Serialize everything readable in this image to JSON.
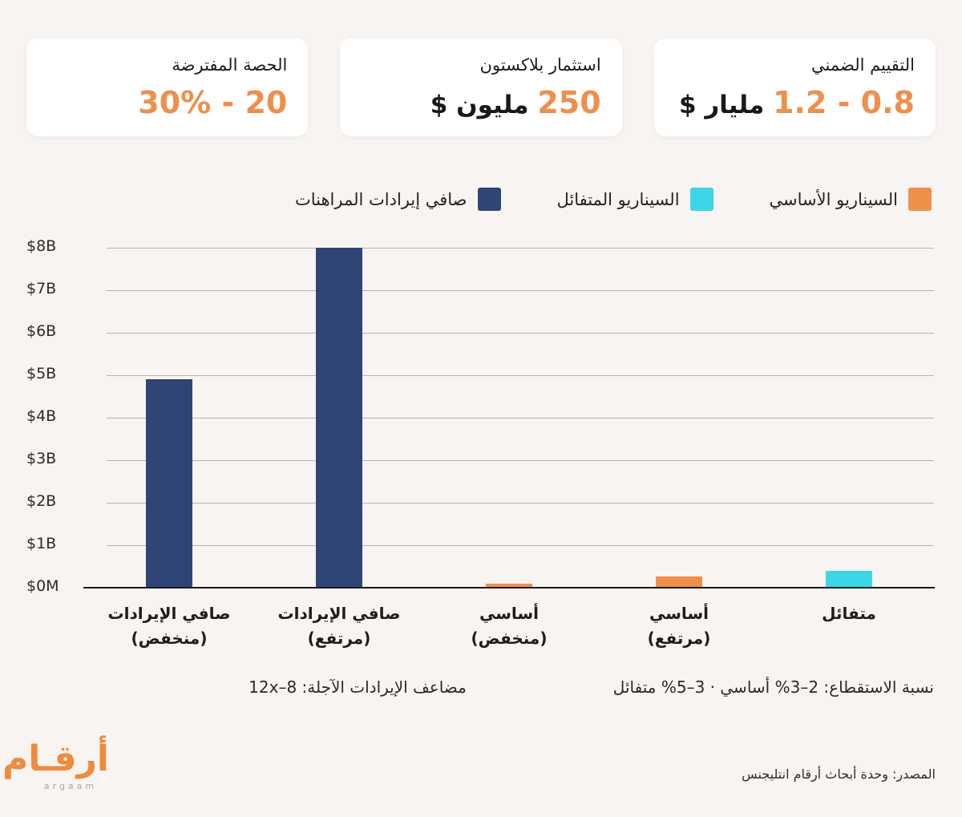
{
  "page": {
    "background": "#F7F4F1",
    "accent_orange": "#EE8F4C",
    "accent_cyan": "#3BD7E6",
    "accent_navy": "#2F4575"
  },
  "cards": [
    {
      "title": "التقييم الضمني",
      "value_highlight": "0.8 - 1.2",
      "value_suffix": "مليار $"
    },
    {
      "title": "استثمار بلاكستون",
      "value_highlight": "250",
      "value_suffix": "مليون $"
    },
    {
      "title": "الحصة المفترضة",
      "value_highlight": "20 - 30%",
      "value_suffix": ""
    }
  ],
  "legend": [
    {
      "label": "السيناريو الأساسي",
      "color": "#EE8F4C"
    },
    {
      "label": "السيناريو المتفائل",
      "color": "#3BD7E6"
    },
    {
      "label": "صافي إيرادات المراهنات",
      "color": "#2F4575"
    }
  ],
  "chart_data": {
    "type": "bar",
    "title": "",
    "categories": [
      "صافي الإيرادات (منخفض)",
      "صافي الإيرادات (مرتفع)",
      "أساسي (منخفض)",
      "أساسي (مرتفع)",
      "متفائل"
    ],
    "x_tick_lines": [
      [
        "صافي الإيرادات",
        "(منخفض)"
      ],
      [
        "صافي الإيرادات",
        "(مرتفع)"
      ],
      [
        "أساسي",
        "(منخفض)"
      ],
      [
        "أساسي",
        "(مرتفع)"
      ],
      [
        "متفائل"
      ]
    ],
    "values": [
      4.9,
      8.0,
      0.1,
      0.27,
      0.4
    ],
    "values_unit": "USD billions",
    "bar_colors": [
      "#2F4575",
      "#2F4575",
      "#EE8F4C",
      "#EE8F4C",
      "#3BD7E6"
    ],
    "y_ticks": [
      "$0M",
      "$1B",
      "$2B",
      "$3B",
      "$4B",
      "$5B",
      "$6B",
      "$7B",
      "$8B"
    ],
    "ylim": [
      0,
      8
    ],
    "grid": "horizontal",
    "legend_position": "top-right",
    "series": [
      {
        "name": "صافي إيرادات المراهنات",
        "color": "#2F4575",
        "categories": [
          "صافي الإيرادات (منخفض)",
          "صافي الإيرادات (مرتفع)"
        ],
        "values": [
          4.9,
          8.0
        ]
      },
      {
        "name": "السيناريو الأساسي",
        "color": "#EE8F4C",
        "categories": [
          "أساسي (منخفض)",
          "أساسي (مرتفع)"
        ],
        "values": [
          0.1,
          0.27
        ]
      },
      {
        "name": "السيناريو المتفائل",
        "color": "#3BD7E6",
        "categories": [
          "متفائل"
        ],
        "values": [
          0.4
        ]
      }
    ]
  },
  "footnotes": {
    "multiple": "مضاعف الإيرادات الآجلة: 8–12x",
    "haircut": "نسبة الاستقطاع: 2–3% أساسي · 3–5% متفائل"
  },
  "footer": {
    "logo_ar": "أرقـام",
    "logo_en": "argaam",
    "source": "المصدر: وحدة أبحاث أرقام انتليجنس"
  }
}
